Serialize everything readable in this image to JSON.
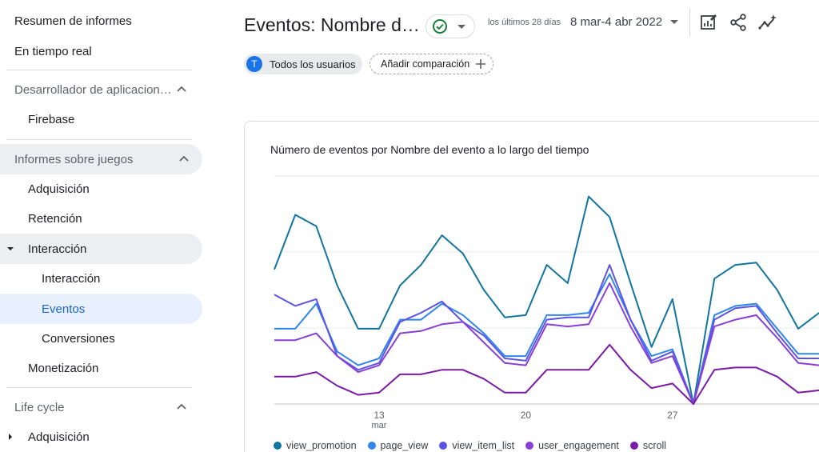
{
  "sidebar": {
    "top_items": [
      {
        "label": "Resumen de informes"
      },
      {
        "label": "En tiempo real"
      }
    ],
    "dev_section": {
      "label": "Desarrollador de aplicacion…",
      "children": [
        {
          "label": "Firebase"
        }
      ]
    },
    "games_section": {
      "label": "Informes sobre juegos"
    },
    "games_items": {
      "acquisition": "Adquisición",
      "retention": "Retención",
      "engagement": "Interacción",
      "engagement_sub": "Interacción",
      "events": "Eventos",
      "conversions": "Conversiones",
      "monetization": "Monetización"
    },
    "lifecycle_section": {
      "label": "Life cycle"
    },
    "lifecycle_items": {
      "acquisition": "Adquisición"
    }
  },
  "header": {
    "title": "Eventos: Nombre d…",
    "date_label": "los últimos 28 días",
    "date_range": "8 mar-4 abr 2022"
  },
  "filters": {
    "users_avatar": "T",
    "users_chip": "Todos los usuarios",
    "compare_chip": "Añadir comparación"
  },
  "card": {
    "title": "Número de eventos por Nombre del evento a lo largo del tiempo"
  },
  "icons": [
    "check-circle-icon",
    "chevron-down-icon",
    "edit-report-icon",
    "share-icon",
    "insights-icon",
    "plus-icon",
    "chevron-up-icon",
    "caret-down-icon",
    "caret-right-icon"
  ],
  "colors": {
    "accent": "#1a73e8",
    "active_bg": "#e8f0fe",
    "status_green": "#188038"
  },
  "chart_data": {
    "type": "line",
    "x": [
      "8 mar",
      "9 mar",
      "10 mar",
      "11 mar",
      "12 mar",
      "13 mar",
      "14 mar",
      "15 mar",
      "16 mar",
      "17 mar",
      "18 mar",
      "19 mar",
      "20 mar",
      "21 mar",
      "22 mar",
      "23 mar",
      "24 mar",
      "25 mar",
      "26 mar",
      "27 mar",
      "28 mar",
      "29 mar",
      "30 mar",
      "31 mar",
      "1 abr",
      "2 abr",
      "3 abr"
    ],
    "x_tick_labels": [
      {
        "index": 5,
        "label": "13",
        "sub": "mar"
      },
      {
        "index": 12,
        "label": "20",
        "sub": ""
      },
      {
        "index": 19,
        "label": "27",
        "sub": ""
      }
    ],
    "ylim": [
      0,
      100
    ],
    "grid": true,
    "legend_position": "bottom",
    "series": [
      {
        "name": "view_promotion",
        "color": "#12759f",
        "values": [
          59,
          83,
          78,
          52,
          33,
          33,
          52,
          61,
          74,
          66,
          50,
          38,
          39,
          61,
          53,
          91,
          82,
          53,
          25,
          46,
          0,
          55,
          61,
          62,
          50,
          33,
          40
        ]
      },
      {
        "name": "page_view",
        "color": "#2f86eb",
        "values": [
          33,
          33,
          44,
          23,
          17,
          20,
          37,
          37,
          44,
          39,
          31,
          21,
          21,
          39,
          39,
          40,
          57,
          37,
          21,
          24,
          0,
          39,
          43,
          44,
          33,
          22,
          22
        ]
      },
      {
        "name": "view_item_list",
        "color": "#5b53e6",
        "values": [
          48,
          43,
          46,
          21,
          15,
          18,
          36,
          40,
          45,
          36,
          30,
          20,
          19,
          37,
          38,
          38,
          61,
          37,
          19,
          23,
          0,
          37,
          42,
          43,
          31,
          20,
          20
        ]
      },
      {
        "name": "user_engagement",
        "color": "#8a3ed8",
        "values": [
          28,
          28,
          31,
          21,
          14,
          17,
          31,
          32,
          35,
          36,
          27,
          18,
          17,
          35,
          34,
          35,
          53,
          34,
          18,
          21,
          0,
          34,
          37,
          39,
          29,
          18,
          17
        ]
      },
      {
        "name": "scroll",
        "color": "#7b1aa6",
        "values": [
          12,
          12,
          14,
          8,
          4,
          5,
          13,
          13,
          15,
          15,
          11,
          5,
          5,
          15,
          15,
          15,
          26,
          15,
          7,
          9,
          0,
          15,
          16,
          16,
          12,
          5,
          6
        ]
      }
    ]
  }
}
